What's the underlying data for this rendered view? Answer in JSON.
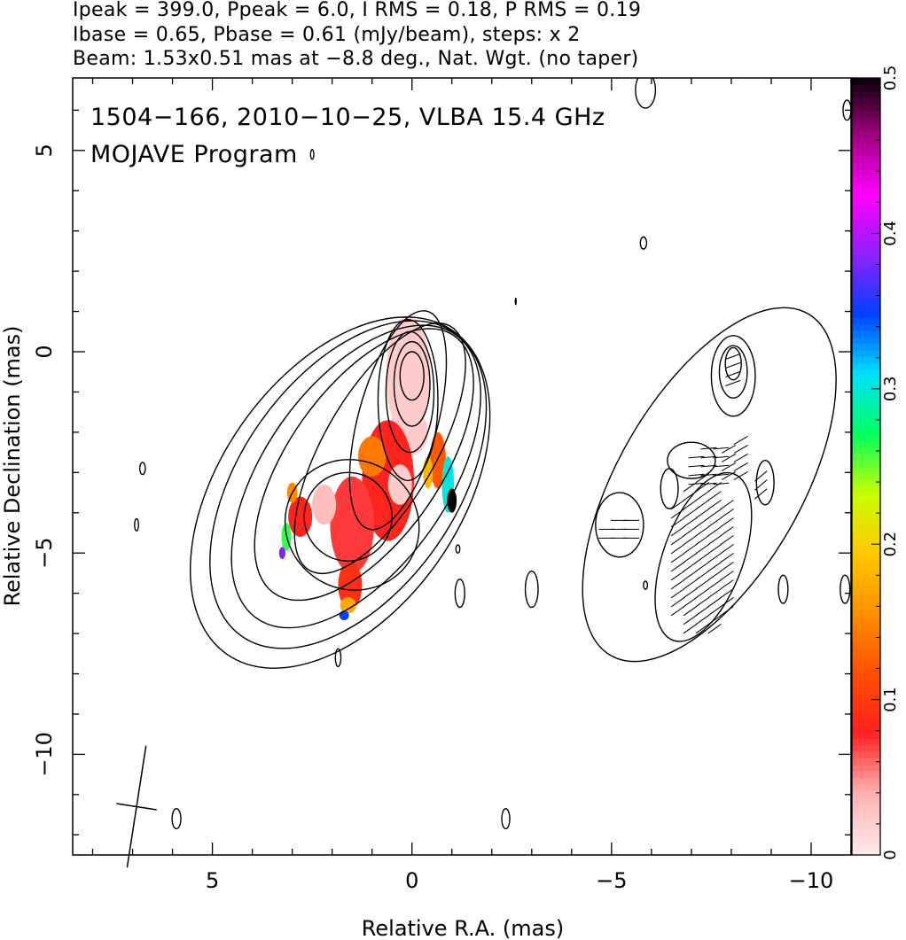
{
  "header": {
    "line1": "Ipeak = 399.0, Ppeak = 6.0, I RMS = 0.18, P RMS = 0.19",
    "line2": "Ibase = 0.65, Pbase = 0.61 (mJy/beam), steps: x 2",
    "line3": "Beam: 1.53x0.51 mas at −8.8 deg., Nat. Wgt. (no taper)"
  },
  "annotations": {
    "source_line": "1504−166, 2010−10−25, VLBA 15.4 GHz",
    "program_line": "MOJAVE Program"
  },
  "colors": {
    "contour": "#000000",
    "colorbar_stops": [
      "#ffe8e8",
      "#ffb0b0",
      "#ff2020",
      "#ff5000",
      "#ff9000",
      "#ffc800",
      "#c8ff00",
      "#00ff60",
      "#00e0ff",
      "#0040ff",
      "#9020ff",
      "#ff00ff",
      "#a00080",
      "#000000"
    ]
  },
  "chart_data": {
    "type": "heatmap",
    "title": "1504−166, 2010−10−25, VLBA 15.4 GHz",
    "xlabel": "Relative R.A. (mas)",
    "ylabel": "Relative Declination (mas)",
    "xlim": [
      8.5,
      -11
    ],
    "ylim": [
      -12.5,
      6.8
    ],
    "x_ticks": [
      5,
      0,
      -5,
      -10
    ],
    "x_tick_labels": [
      "5",
      "0",
      "−5",
      "−10"
    ],
    "y_ticks": [
      5,
      0,
      -5,
      -10
    ],
    "y_tick_labels": [
      "5",
      "0",
      "−5",
      "−10"
    ],
    "grid": false,
    "colorbar": {
      "label_values": [
        0,
        0.1,
        0.2,
        0.3,
        0.4,
        0.5
      ],
      "tick_labels": [
        "0",
        "0.1",
        "0.2",
        "0.3",
        "0.4",
        "0.5"
      ],
      "range": [
        0,
        0.5
      ]
    },
    "left_panel": {
      "contours": [
        {
          "cx": 0,
          "cy": -0.6,
          "a": 0.3,
          "b": 0.6,
          "pa": 0
        },
        {
          "cx": 0,
          "cy": -0.8,
          "a": 0.45,
          "b": 1.05,
          "pa": 0
        },
        {
          "cx": 0.05,
          "cy": -1.0,
          "a": 0.6,
          "b": 1.5,
          "pa": 0
        },
        {
          "cx": 0.1,
          "cy": -1.2,
          "a": 0.75,
          "b": 2.0,
          "pa": 0
        },
        {
          "cx": 0.35,
          "cy": -1.7,
          "a": 1.0,
          "b": 2.8,
          "pa": 15
        },
        {
          "cx": 0.8,
          "cy": -2.4,
          "a": 1.4,
          "b": 3.5,
          "pa": 30
        },
        {
          "cx": 1.2,
          "cy": -2.8,
          "a": 1.9,
          "b": 3.9,
          "pa": 35
        },
        {
          "cx": 1.4,
          "cy": -3.1,
          "a": 2.3,
          "b": 4.3,
          "pa": 35
        },
        {
          "cx": 1.6,
          "cy": -3.3,
          "a": 2.7,
          "b": 4.6,
          "pa": 35
        },
        {
          "cx": 1.8,
          "cy": -3.5,
          "a": 3.0,
          "b": 4.9,
          "pa": 35
        },
        {
          "cx": 1.6,
          "cy": -4.1,
          "a": 1.1,
          "b": 1.1,
          "pa": 0
        },
        {
          "cx": 1.5,
          "cy": -4.3,
          "a": 1.7,
          "b": 1.6,
          "pa": 30
        }
      ],
      "blobs": [
        {
          "cx": 1.85,
          "cy": -7.6,
          "a": 0.07,
          "b": 0.22
        },
        {
          "cx": -1.15,
          "cy": -4.9,
          "a": 0.05,
          "b": 0.1
        },
        {
          "cx": -1.2,
          "cy": -6.0,
          "a": 0.12,
          "b": 0.35
        },
        {
          "cx": -3.0,
          "cy": -5.9,
          "a": 0.16,
          "b": 0.45
        },
        {
          "cx": 5.9,
          "cy": -11.6,
          "a": 0.11,
          "b": 0.25
        },
        {
          "cx": -2.35,
          "cy": -11.6,
          "a": 0.1,
          "b": 0.25
        },
        {
          "cx": -5.85,
          "cy": 6.5,
          "a": 0.25,
          "b": 0.45
        },
        {
          "cx": -5.8,
          "cy": 2.7,
          "a": 0.08,
          "b": 0.15
        },
        {
          "cx": 6.75,
          "cy": -2.9,
          "a": 0.07,
          "b": 0.15
        },
        {
          "cx": 6.9,
          "cy": -4.3,
          "a": 0.05,
          "b": 0.15
        },
        {
          "cx": 2.5,
          "cy": 4.9,
          "a": 0.04,
          "b": 0.12
        },
        {
          "cx": -2.6,
          "cy": 1.25,
          "a": 0.01,
          "b": 0.08
        }
      ],
      "fractional_pol_regions": [
        {
          "cx": 0.1,
          "cy": -0.6,
          "a": 0.55,
          "b": 1.5,
          "value": 0.02
        },
        {
          "cx": 0.1,
          "cy": -2.0,
          "a": 0.5,
          "b": 0.6,
          "value": 0.02
        },
        {
          "cx": -0.65,
          "cy": -2.7,
          "a": 0.2,
          "b": 0.7,
          "value": 0.12
        },
        {
          "cx": -0.9,
          "cy": -3.3,
          "a": 0.15,
          "b": 0.7,
          "value": 0.3
        },
        {
          "cx": -1.0,
          "cy": -3.7,
          "a": 0.12,
          "b": 0.3,
          "value": 0.5
        },
        {
          "cx": 0.6,
          "cy": -3.2,
          "a": 0.65,
          "b": 1.5,
          "value": 0.08
        },
        {
          "cx": 1.0,
          "cy": -2.6,
          "a": 0.35,
          "b": 0.5,
          "value": 0.14
        },
        {
          "cx": 0.3,
          "cy": -3.3,
          "a": 0.3,
          "b": 0.5,
          "value": 0.02
        },
        {
          "cx": 1.5,
          "cy": -4.3,
          "a": 0.55,
          "b": 1.2,
          "value": 0.07
        },
        {
          "cx": 1.55,
          "cy": -5.8,
          "a": 0.3,
          "b": 0.6,
          "value": 0.09
        },
        {
          "cx": 1.6,
          "cy": -6.3,
          "a": 0.2,
          "b": 0.2,
          "value": 0.17
        },
        {
          "cx": 1.7,
          "cy": -6.55,
          "a": 0.12,
          "b": 0.12,
          "value": 0.35
        },
        {
          "cx": 2.2,
          "cy": -3.8,
          "a": 0.3,
          "b": 0.5,
          "value": 0.03
        },
        {
          "cx": 2.8,
          "cy": -4.1,
          "a": 0.3,
          "b": 0.5,
          "value": 0.08
        },
        {
          "cx": 3.0,
          "cy": -3.5,
          "a": 0.13,
          "b": 0.25,
          "value": 0.15
        },
        {
          "cx": 3.15,
          "cy": -4.6,
          "a": 0.12,
          "b": 0.35,
          "value": 0.26
        },
        {
          "cx": 3.25,
          "cy": -5.0,
          "a": 0.08,
          "b": 0.15,
          "value": 0.38
        },
        {
          "cx": -0.4,
          "cy": -3.0,
          "a": 0.12,
          "b": 0.4,
          "value": 0.18
        }
      ]
    },
    "right_panel": {
      "contours": [
        {
          "cx": -8.05,
          "cy": -0.3,
          "a": 0.2,
          "b": 0.4,
          "pa": 0
        },
        {
          "cx": -8.05,
          "cy": -0.5,
          "a": 0.35,
          "b": 0.65,
          "pa": 0
        },
        {
          "cx": -8.05,
          "cy": -0.6,
          "a": 0.55,
          "b": 1.0,
          "pa": 0
        },
        {
          "cx": -8.85,
          "cy": -3.25,
          "a": 0.22,
          "b": 0.55,
          "pa": 0
        },
        {
          "cx": -6.45,
          "cy": -3.4,
          "a": 0.22,
          "b": 0.5,
          "pa": 0
        },
        {
          "cx": -5.2,
          "cy": -4.3,
          "a": 0.6,
          "b": 0.8,
          "pa": 0
        },
        {
          "cx": -7.0,
          "cy": -2.7,
          "a": 0.6,
          "b": 0.45,
          "pa": 0
        },
        {
          "cx": -7.3,
          "cy": -5.1,
          "a": 1.0,
          "b": 2.2,
          "pa": 20
        },
        {
          "cx": -7.45,
          "cy": -3.3,
          "a": 2.3,
          "b": 4.9,
          "pa": 30
        }
      ],
      "blobs": [
        {
          "cx": -9.3,
          "cy": -5.9,
          "a": 0.12,
          "b": 0.35
        },
        {
          "cx": -10.85,
          "cy": -5.9,
          "a": 0.12,
          "b": 0.35
        },
        {
          "cx": -5.85,
          "cy": -5.8,
          "a": 0.05,
          "b": 0.1
        },
        {
          "cx": -10.9,
          "cy": 6.0,
          "a": 0.1,
          "b": 0.25
        }
      ]
    },
    "beam_marker": {
      "x": 6.9,
      "y": -11.3,
      "major": 1.53,
      "minor": 0.51,
      "pa_deg": -8.8
    }
  }
}
